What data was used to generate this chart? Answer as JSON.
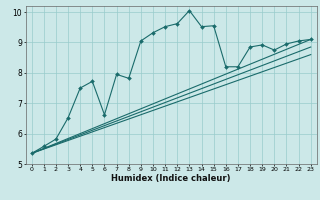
{
  "xlabel": "Humidex (Indice chaleur)",
  "bg_color": "#cce8e8",
  "line_color": "#1a6b6b",
  "grid_color": "#99cccc",
  "xlim": [
    -0.5,
    23.5
  ],
  "ylim": [
    5,
    10.2
  ],
  "yticks": [
    5,
    6,
    7,
    8,
    9,
    10
  ],
  "xticks": [
    0,
    1,
    2,
    3,
    4,
    5,
    6,
    7,
    8,
    9,
    10,
    11,
    12,
    13,
    14,
    15,
    16,
    17,
    18,
    19,
    20,
    21,
    22,
    23
  ],
  "line1_x": [
    0,
    1,
    2,
    3,
    4,
    5,
    6,
    7,
    8,
    9,
    10,
    11,
    12,
    13,
    14,
    15,
    16,
    17,
    18,
    19,
    20,
    21,
    22,
    23
  ],
  "line1_y": [
    5.35,
    5.58,
    5.82,
    6.52,
    7.5,
    7.72,
    6.62,
    7.95,
    7.82,
    9.05,
    9.32,
    9.52,
    9.62,
    10.05,
    9.52,
    9.55,
    8.2,
    8.2,
    8.85,
    8.92,
    8.75,
    8.95,
    9.05,
    9.1
  ],
  "line2_x": [
    0,
    23
  ],
  "line2_y": [
    5.35,
    9.1
  ],
  "line3_x": [
    0,
    23
  ],
  "line3_y": [
    5.35,
    8.85
  ],
  "line4_x": [
    0,
    23
  ],
  "line4_y": [
    5.35,
    8.6
  ]
}
